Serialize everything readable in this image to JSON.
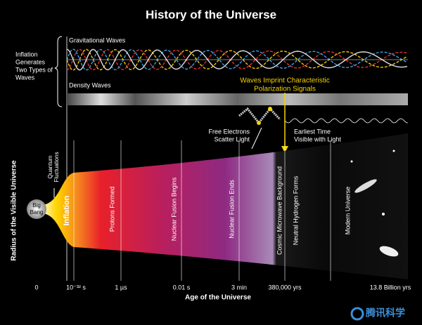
{
  "title": "History of the Universe",
  "inflation_note": [
    "Inflation",
    "Generates",
    "Two Types of",
    "Waves"
  ],
  "gravitational_waves": "Gravitational Waves",
  "density_waves": "Density Waves",
  "polarization": [
    "Waves Imprint Characteristic",
    "Polarization Signals"
  ],
  "free_electrons": [
    "Free Electrons",
    "Scatter Light"
  ],
  "earliest_time": [
    "Earliest Time",
    "Visible with Light"
  ],
  "y_axis_label": "Radius of the Visible Universe",
  "quantum": [
    "Quantum",
    "Fluctuations"
  ],
  "big_bang": [
    "Big",
    "Bang"
  ],
  "eras": [
    "Inflation",
    "Protons Formed",
    "Nuclear Fusion Begins",
    "Nuclear Fusion Ends",
    "Cosmic Microwave Background",
    "Neutral Hydrogen Forms",
    "Modern Universe"
  ],
  "time_ticks": [
    "0",
    "10⁻³² s",
    "1 µs",
    "0.01 s",
    "3 min",
    "380,000 yrs",
    "13.8 Billion yrs"
  ],
  "x_axis_label": "Age of the Universe",
  "watermark": "腾讯科学"
}
